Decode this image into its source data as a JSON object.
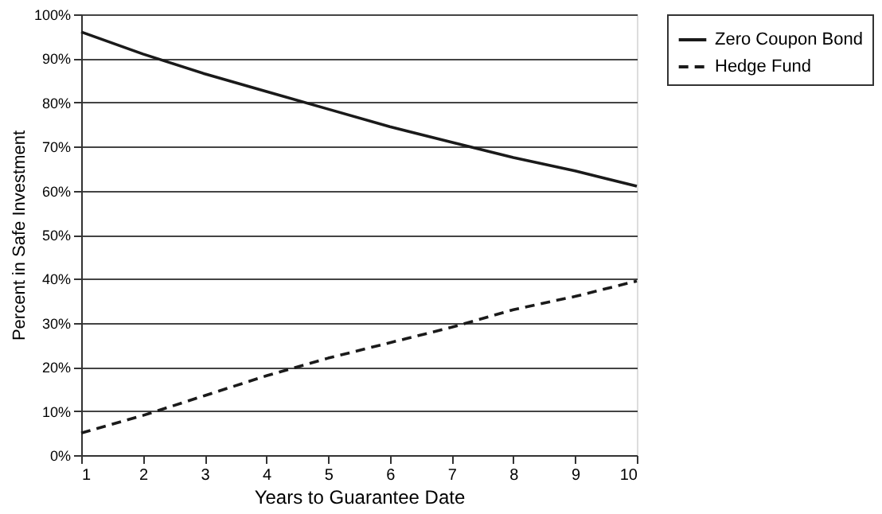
{
  "chart_data": {
    "type": "line",
    "xlabel": "Years to Guarantee Date",
    "ylabel": "Percent in Safe Investment",
    "x": [
      1,
      2,
      3,
      4,
      5,
      6,
      7,
      8,
      9,
      10
    ],
    "series": [
      {
        "name": "Zero Coupon Bond",
        "color": "#1a1a1a",
        "line_style": "solid",
        "values": [
          96,
          91,
          86.5,
          82.5,
          78.5,
          74.5,
          71,
          67.5,
          64.5,
          61
        ]
      },
      {
        "name": "Hedge Fund",
        "color": "#1a1a1a",
        "line_style": "dashed",
        "values": [
          5,
          9,
          13.5,
          18,
          22,
          25.5,
          29,
          33,
          36,
          39.5
        ]
      }
    ],
    "xlim": [
      1,
      10
    ],
    "xticks": [
      1,
      2,
      3,
      4,
      5,
      6,
      7,
      8,
      9,
      10
    ],
    "ylim": [
      0,
      100
    ],
    "yticks": [
      {
        "value": 0,
        "label": "0%"
      },
      {
        "value": 10,
        "label": "10%"
      },
      {
        "value": 20,
        "label": "20%"
      },
      {
        "value": 30,
        "label": "30%"
      },
      {
        "value": 40,
        "label": "40%"
      },
      {
        "value": 50,
        "label": "50%"
      },
      {
        "value": 60,
        "label": "60%"
      },
      {
        "value": 70,
        "label": "70%"
      },
      {
        "value": 80,
        "label": "80%"
      },
      {
        "value": 90,
        "label": "90%"
      },
      {
        "value": 100,
        "label": "100%"
      }
    ],
    "grid": "y",
    "legend": "right",
    "marker": "none"
  }
}
